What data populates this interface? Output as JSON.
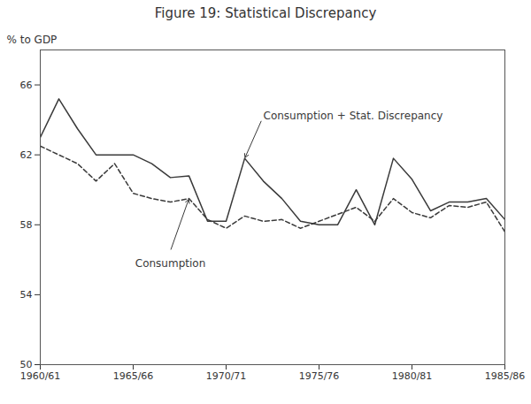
{
  "chart_data": {
    "type": "line",
    "title": "Figure 19: Statistical Discrepancy",
    "ylabel": "% to GDP",
    "categories": [
      "1960/61",
      null,
      null,
      null,
      null,
      "1965/66",
      null,
      null,
      null,
      null,
      "1970/71",
      null,
      null,
      null,
      null,
      "1975/76",
      null,
      null,
      null,
      null,
      "1980/81",
      null,
      null,
      null,
      null,
      "1985/86"
    ],
    "series": [
      {
        "name": "Consumption + Stat. Discrepancy",
        "color": "#3a3a3a",
        "line_style": "solid",
        "values": [
          63.0,
          65.2,
          63.5,
          62.0,
          62.0,
          62.0,
          61.5,
          60.7,
          60.8,
          58.2,
          58.2,
          61.8,
          60.5,
          59.5,
          58.2,
          58.0,
          58.0,
          60.0,
          58.0,
          61.8,
          60.6,
          58.8,
          59.3,
          59.3,
          59.5,
          58.3
        ]
      },
      {
        "name": "Consumption",
        "color": "#3a3a3a",
        "line_style": "dashed",
        "values": [
          62.5,
          62.0,
          61.5,
          60.5,
          61.5,
          59.8,
          59.5,
          59.3,
          59.5,
          58.3,
          57.8,
          58.5,
          58.2,
          58.3,
          57.8,
          58.2,
          58.6,
          59.0,
          58.2,
          59.5,
          58.7,
          58.4,
          59.1,
          59.0,
          59.3,
          57.6
        ]
      }
    ],
    "ylim": [
      50,
      68
    ],
    "yticks": [
      50,
      54,
      58,
      62,
      66
    ],
    "grid": false
  }
}
